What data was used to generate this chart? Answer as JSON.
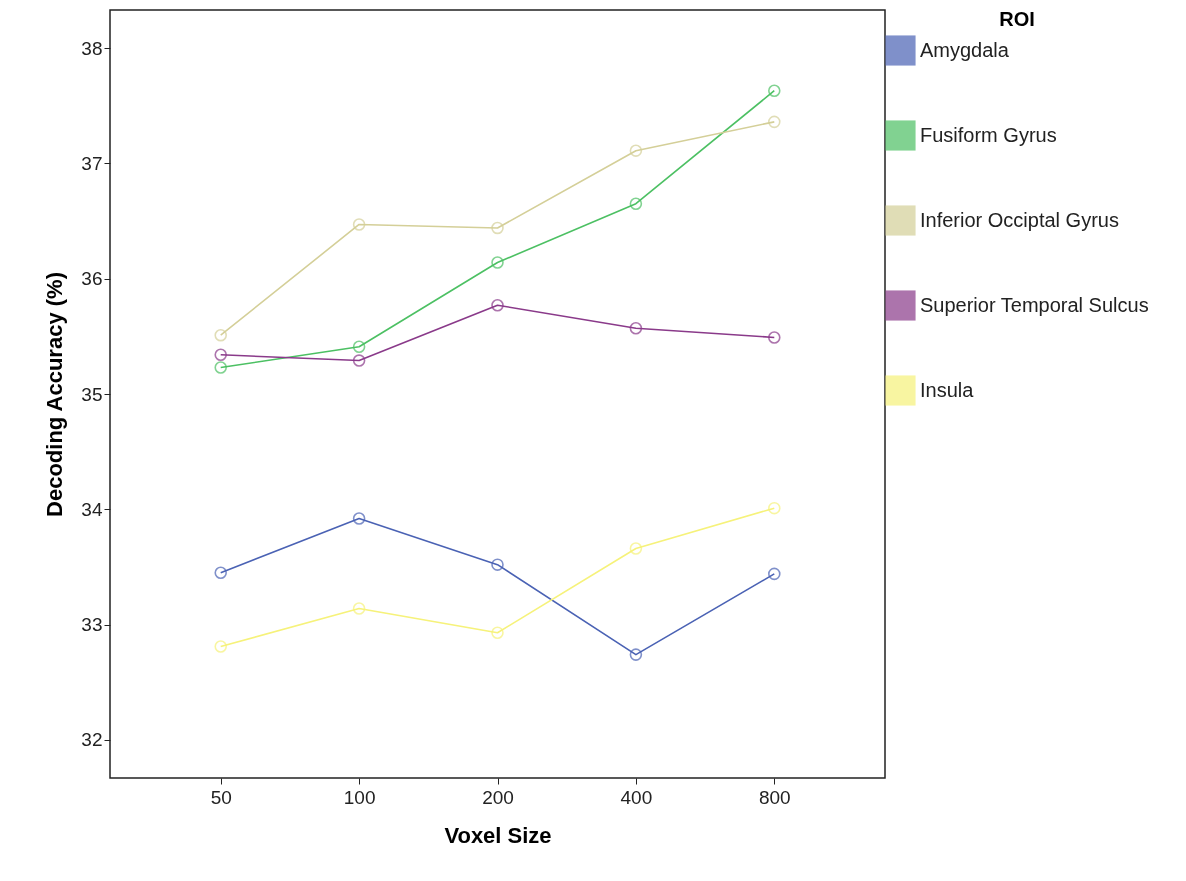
{
  "chart_data": {
    "type": "line",
    "xlabel": "Voxel Size",
    "ylabel": "Decoding Accuracy (%)",
    "legend_title": "ROI",
    "categories": [
      "50",
      "100",
      "200",
      "400",
      "800"
    ],
    "ylim": [
      31.67,
      38.33
    ],
    "yticks": [
      32,
      33,
      34,
      35,
      36,
      37,
      38
    ],
    "grid": false,
    "legend": "top right",
    "marker": "circle",
    "line_style": "solid",
    "series": [
      {
        "name": "Amygdala",
        "color": "#4a62b4",
        "values": [
          33.45,
          33.92,
          33.52,
          32.74,
          33.44
        ]
      },
      {
        "name": "Fusiform Gyrus",
        "color": "#4cc063",
        "values": [
          35.23,
          35.41,
          36.14,
          36.65,
          37.63
        ]
      },
      {
        "name": "Inferior Occiptal Gyrus",
        "color": "#d4cf98",
        "values": [
          35.51,
          36.47,
          36.44,
          37.11,
          37.36
        ]
      },
      {
        "name": "Superior Temporal Sulcus",
        "color": "#8a3a8a",
        "values": [
          35.34,
          35.29,
          35.77,
          35.57,
          35.49
        ]
      },
      {
        "name": "Insula",
        "color": "#f6f27a",
        "values": [
          32.81,
          33.14,
          32.93,
          33.66,
          34.01
        ]
      }
    ]
  }
}
